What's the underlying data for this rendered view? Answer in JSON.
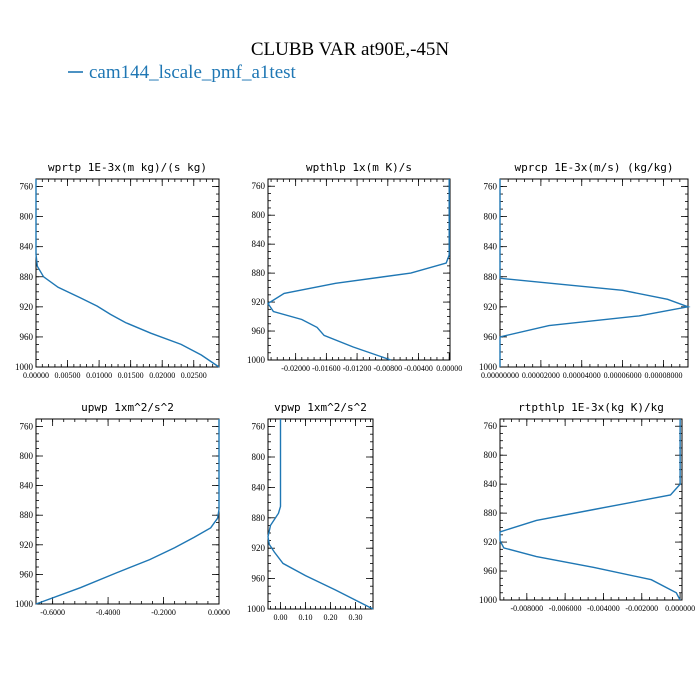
{
  "figure": {
    "title": "CLUBB VAR at90E,-45N",
    "legend": "cam144_lscale_pmf_a1test",
    "line_color": "#1f77b4"
  },
  "chart_data": [
    {
      "type": "line",
      "title": "wprtp  1E-3x(m kg)/(s kg)",
      "xlim": [
        0,
        0.029
      ],
      "ylim": [
        1000,
        750
      ],
      "xticks": [
        0,
        0.005,
        0.01,
        0.015,
        0.02,
        0.025
      ],
      "xtick_labels": [
        "0.00000",
        "0.00500",
        "0.01000",
        "0.01500",
        "0.02000",
        "0.02500"
      ],
      "yticks": [
        760,
        800,
        840,
        880,
        920,
        960,
        1000
      ],
      "ytick_labels": [
        "760",
        "800",
        "840",
        "880",
        "920",
        "960",
        "1000"
      ],
      "series": [
        {
          "x": [
            0.0,
            0.0,
            0.0002,
            0.0012,
            0.0035,
            0.007,
            0.0097,
            0.0118,
            0.0142,
            0.0182,
            0.023,
            0.0262,
            0.029
          ],
          "y": [
            750,
            850,
            866,
            880,
            894,
            908,
            919,
            930,
            941,
            955,
            970,
            984,
            1000
          ]
        }
      ]
    },
    {
      "type": "line",
      "title": "wpthlp  1x(m K)/s",
      "xlim": [
        -0.0236,
        0.0001
      ],
      "ylim": [
        1000,
        750
      ],
      "xticks": [
        -0.02,
        -0.016,
        -0.012,
        -0.008,
        -0.004,
        0.0
      ],
      "xtick_labels": [
        "-0.02000",
        "-0.01600",
        "-0.01200",
        "-0.00800",
        "-0.00400",
        "0.00000"
      ],
      "yticks": [
        760,
        800,
        840,
        880,
        920,
        960,
        1000
      ],
      "ytick_labels": [
        "760",
        "800",
        "840",
        "880",
        "920",
        "960",
        "1000"
      ],
      "series": [
        {
          "x": [
            0.0,
            0.0,
            -0.0004,
            -0.005,
            -0.0148,
            -0.0215,
            -0.0236,
            -0.0229,
            -0.0192,
            -0.0172,
            -0.0163,
            -0.0125,
            -0.0076
          ],
          "y": [
            750,
            855,
            866,
            880,
            894,
            908,
            922,
            933,
            944,
            955,
            966,
            982,
            1000
          ]
        }
      ]
    },
    {
      "type": "line",
      "title": "wprcp  1E-3x(m/s) (kg/kg)",
      "xlim": [
        0,
        9.2e-05
      ],
      "ylim": [
        1000,
        750
      ],
      "xticks": [
        0,
        2e-05,
        4e-05,
        6e-05,
        8e-05
      ],
      "xtick_labels": [
        "0.00000000",
        "0.00002000",
        "0.00004000",
        "0.00006000",
        "0.00008000"
      ],
      "yticks": [
        760,
        800,
        840,
        880,
        920,
        960,
        1000
      ],
      "ytick_labels": [
        "760",
        "800",
        "840",
        "880",
        "920",
        "960",
        "1000"
      ],
      "series": [
        {
          "x": [
            0.0,
            0.0,
            0.0,
            3e-05,
            6e-05,
            8.2e-05,
            9.2e-05,
            6.8e-05,
            2.4e-05,
            0.0,
            0.0
          ],
          "y": [
            750,
            870,
            882,
            890,
            898,
            910,
            920,
            932,
            945,
            960,
            1000
          ]
        }
      ]
    },
    {
      "type": "line",
      "title": "upwp  1xm^2/s^2",
      "xlim": [
        -0.66,
        0.0
      ],
      "ylim": [
        1000,
        750
      ],
      "xticks": [
        -0.6,
        -0.4,
        -0.2,
        0.0
      ],
      "xtick_labels": [
        "-0.6000",
        "-0.4000",
        "-0.2000",
        "0.0000"
      ],
      "yticks": [
        760,
        800,
        840,
        880,
        920,
        960,
        1000
      ],
      "ytick_labels": [
        "760",
        "800",
        "840",
        "880",
        "920",
        "960",
        "1000"
      ],
      "series": [
        {
          "x": [
            0.0,
            0.0,
            -0.005,
            -0.03,
            -0.09,
            -0.16,
            -0.25,
            -0.37,
            -0.5,
            -0.66
          ],
          "y": [
            750,
            872,
            884,
            897,
            910,
            924,
            940,
            958,
            978,
            1000
          ]
        }
      ]
    },
    {
      "type": "line",
      "title": "vpwp  1xm^2/s^2",
      "xlim": [
        -0.05,
        0.37
      ],
      "ylim": [
        1000,
        750
      ],
      "xticks": [
        0.0,
        0.1,
        0.2,
        0.3
      ],
      "xtick_labels": [
        "0.00",
        "0.10",
        "0.20",
        "0.30"
      ],
      "yticks": [
        760,
        800,
        840,
        880,
        920,
        960,
        1000
      ],
      "ytick_labels": [
        "760",
        "800",
        "840",
        "880",
        "920",
        "960",
        "1000"
      ],
      "series": [
        {
          "x": [
            0.0,
            0.0,
            -0.008,
            -0.04,
            -0.05,
            -0.045,
            -0.025,
            0.01,
            0.1,
            0.22,
            0.37
          ],
          "y": [
            750,
            865,
            874,
            890,
            905,
            915,
            925,
            940,
            956,
            975,
            1000
          ]
        }
      ]
    },
    {
      "type": "line",
      "title": "rtpthlp  1E-3x(kg K)/kg",
      "xlim": [
        -0.0094,
        0.0001
      ],
      "ylim": [
        1000,
        750
      ],
      "xticks": [
        -0.008,
        -0.006,
        -0.004,
        -0.002,
        0.0
      ],
      "xtick_labels": [
        "-0.008000",
        "-0.006000",
        "-0.004000",
        "-0.002000",
        "0.000000"
      ],
      "yticks": [
        760,
        800,
        840,
        880,
        920,
        960,
        1000
      ],
      "ytick_labels": [
        "760",
        "800",
        "840",
        "880",
        "920",
        "960",
        "1000"
      ],
      "series": [
        {
          "x": [
            0.0,
            0.0,
            -0.0005,
            -0.0045,
            -0.0075,
            -0.0094,
            -0.0094,
            -0.0092,
            -0.0075,
            -0.0045,
            -0.0015,
            -0.0002,
            0.0
          ],
          "y": [
            750,
            840,
            855,
            875,
            890,
            906,
            918,
            928,
            940,
            955,
            972,
            990,
            1000
          ]
        }
      ]
    }
  ]
}
